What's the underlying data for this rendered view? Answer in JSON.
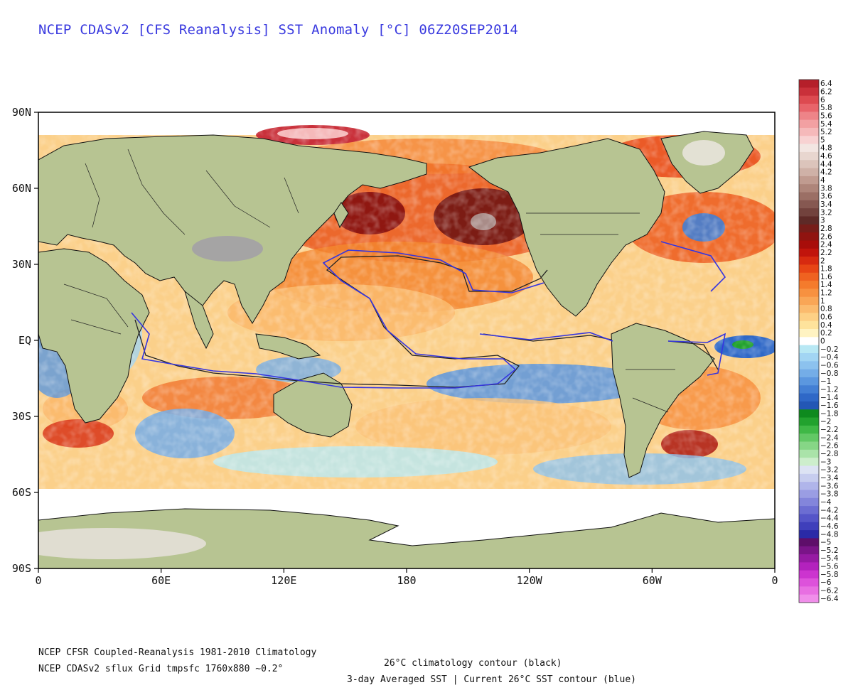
{
  "title": "NCEP CDASv2 [CFS Reanalysis] SST Anomaly [°C] 06Z20SEP2014",
  "map": {
    "lat_labels": [
      "90N",
      "60N",
      "30N",
      "EQ",
      "30S",
      "60S",
      "90S"
    ],
    "lon_labels": [
      "0",
      "60E",
      "120E",
      "180",
      "120W",
      "60W",
      "0"
    ]
  },
  "colorbar": {
    "labels": [
      "6.4",
      "6.2",
      "6",
      "5.8",
      "5.6",
      "5.4",
      "5.2",
      "5",
      "4.8",
      "4.6",
      "4.4",
      "4.2",
      "4",
      "3.8",
      "3.6",
      "3.4",
      "3.2",
      "3",
      "2.8",
      "2.6",
      "2.4",
      "2.2",
      "2",
      "1.8",
      "1.6",
      "1.4",
      "1.2",
      "1",
      "0.8",
      "0.6",
      "0.4",
      "0.2",
      "0",
      "−0.2",
      "−0.4",
      "−0.6",
      "−0.8",
      "−1",
      "−1.2",
      "−1.4",
      "−1.6",
      "−1.8",
      "−2",
      "−2.2",
      "−2.4",
      "−2.6",
      "−2.8",
      "−3",
      "−3.2",
      "−3.4",
      "−3.6",
      "−3.8",
      "−4",
      "−4.2",
      "−4.4",
      "−4.6",
      "−4.8",
      "−5",
      "−5.2",
      "−5.4",
      "−5.6",
      "−5.8",
      "−6",
      "−6.2",
      "−6.4"
    ],
    "colors": [
      "#b51f2a",
      "#c9303a",
      "#dd4a50",
      "#e8646a",
      "#ee8488",
      "#f2a0a2",
      "#f5b9ba",
      "#f8d2d2",
      "#f3e6e2",
      "#e8d6cf",
      "#dcc4bb",
      "#cfb1a7",
      "#c09b90",
      "#ae857a",
      "#9b6f65",
      "#865851",
      "#72423d",
      "#5e2a27",
      "#771d19",
      "#901410",
      "#a80d0a",
      "#c1140c",
      "#d72a10",
      "#e74515",
      "#ef6220",
      "#f47b2c",
      "#f79140",
      "#f9a656",
      "#fbbb6e",
      "#fdd085",
      "#fee39c",
      "#fff3c2",
      "#ffffff",
      "#b8e8f4",
      "#a2d5f3",
      "#8cc2ee",
      "#74ade7",
      "#5b97df",
      "#437fd4",
      "#2f68c7",
      "#2357b5",
      "#0e8a1e",
      "#22a22e",
      "#3fb846",
      "#62c865",
      "#86d686",
      "#aae3a9",
      "#cdeecc",
      "#dde3f4",
      "#c7cdef",
      "#b0b5ea",
      "#9a9de3",
      "#8385db",
      "#6c6dd2",
      "#5555c8",
      "#3f3fbb",
      "#2a2aa7",
      "#5e0e6a",
      "#7a1488",
      "#961aa3",
      "#b322bd",
      "#cc34cf",
      "#dd52db",
      "#e86fe2",
      "#f08eea"
    ]
  },
  "footer": {
    "line1_left": "NCEP CFSR Coupled-Reanalysis 1981-2010 Climatology",
    "line1_right": "26°C climatology contour (black)",
    "line2_left": "NCEP CDASv2 sflux Grid tmpsfc 1760x880 ~0.2°",
    "line2_right": "3-day Averaged SST | Current 26°C SST contour (blue)"
  }
}
